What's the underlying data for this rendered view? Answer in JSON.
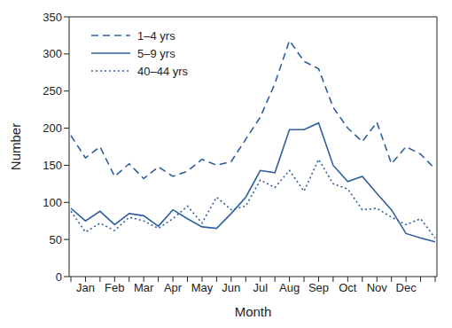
{
  "chart_data": {
    "type": "line",
    "x_label": "Month",
    "y_label": "Number",
    "categories": [
      null,
      "Jan",
      null,
      "Feb",
      null,
      "Mar",
      null,
      "Apr",
      null,
      "May",
      null,
      "Jun",
      null,
      "Jul",
      null,
      "Aug",
      null,
      "Sep",
      null,
      "Oct",
      null,
      "Nov",
      null,
      "Dec",
      null,
      null
    ],
    "series": [
      {
        "name": "1–4 yrs",
        "color": "#2f5f9e",
        "line_style": "dashed",
        "values": [
          190,
          160,
          175,
          135,
          152,
          132,
          148,
          135,
          142,
          158,
          150,
          155,
          185,
          215,
          260,
          318,
          290,
          280,
          228,
          200,
          182,
          208,
          152,
          175,
          165,
          145
        ]
      },
      {
        "name": "5–9 yrs",
        "color": "#2f5f9e",
        "line_style": "solid",
        "values": [
          92,
          75,
          88,
          70,
          85,
          82,
          68,
          90,
          78,
          67,
          65,
          85,
          107,
          143,
          140,
          198,
          198,
          207,
          150,
          128,
          135,
          112,
          90,
          58,
          52,
          47
        ]
      },
      {
        "name": "40–44 yrs",
        "color": "#2f5f9e",
        "line_style": "dotted",
        "values": [
          88,
          60,
          72,
          62,
          80,
          75,
          65,
          78,
          95,
          72,
          107,
          90,
          95,
          130,
          120,
          143,
          115,
          158,
          125,
          118,
          90,
          92,
          80,
          70,
          78,
          52
        ]
      }
    ],
    "ylim": [
      0,
      350
    ],
    "yticks": [
      0,
      50,
      100,
      150,
      200,
      250,
      300,
      350
    ],
    "grid": false,
    "legend": "upper left"
  }
}
